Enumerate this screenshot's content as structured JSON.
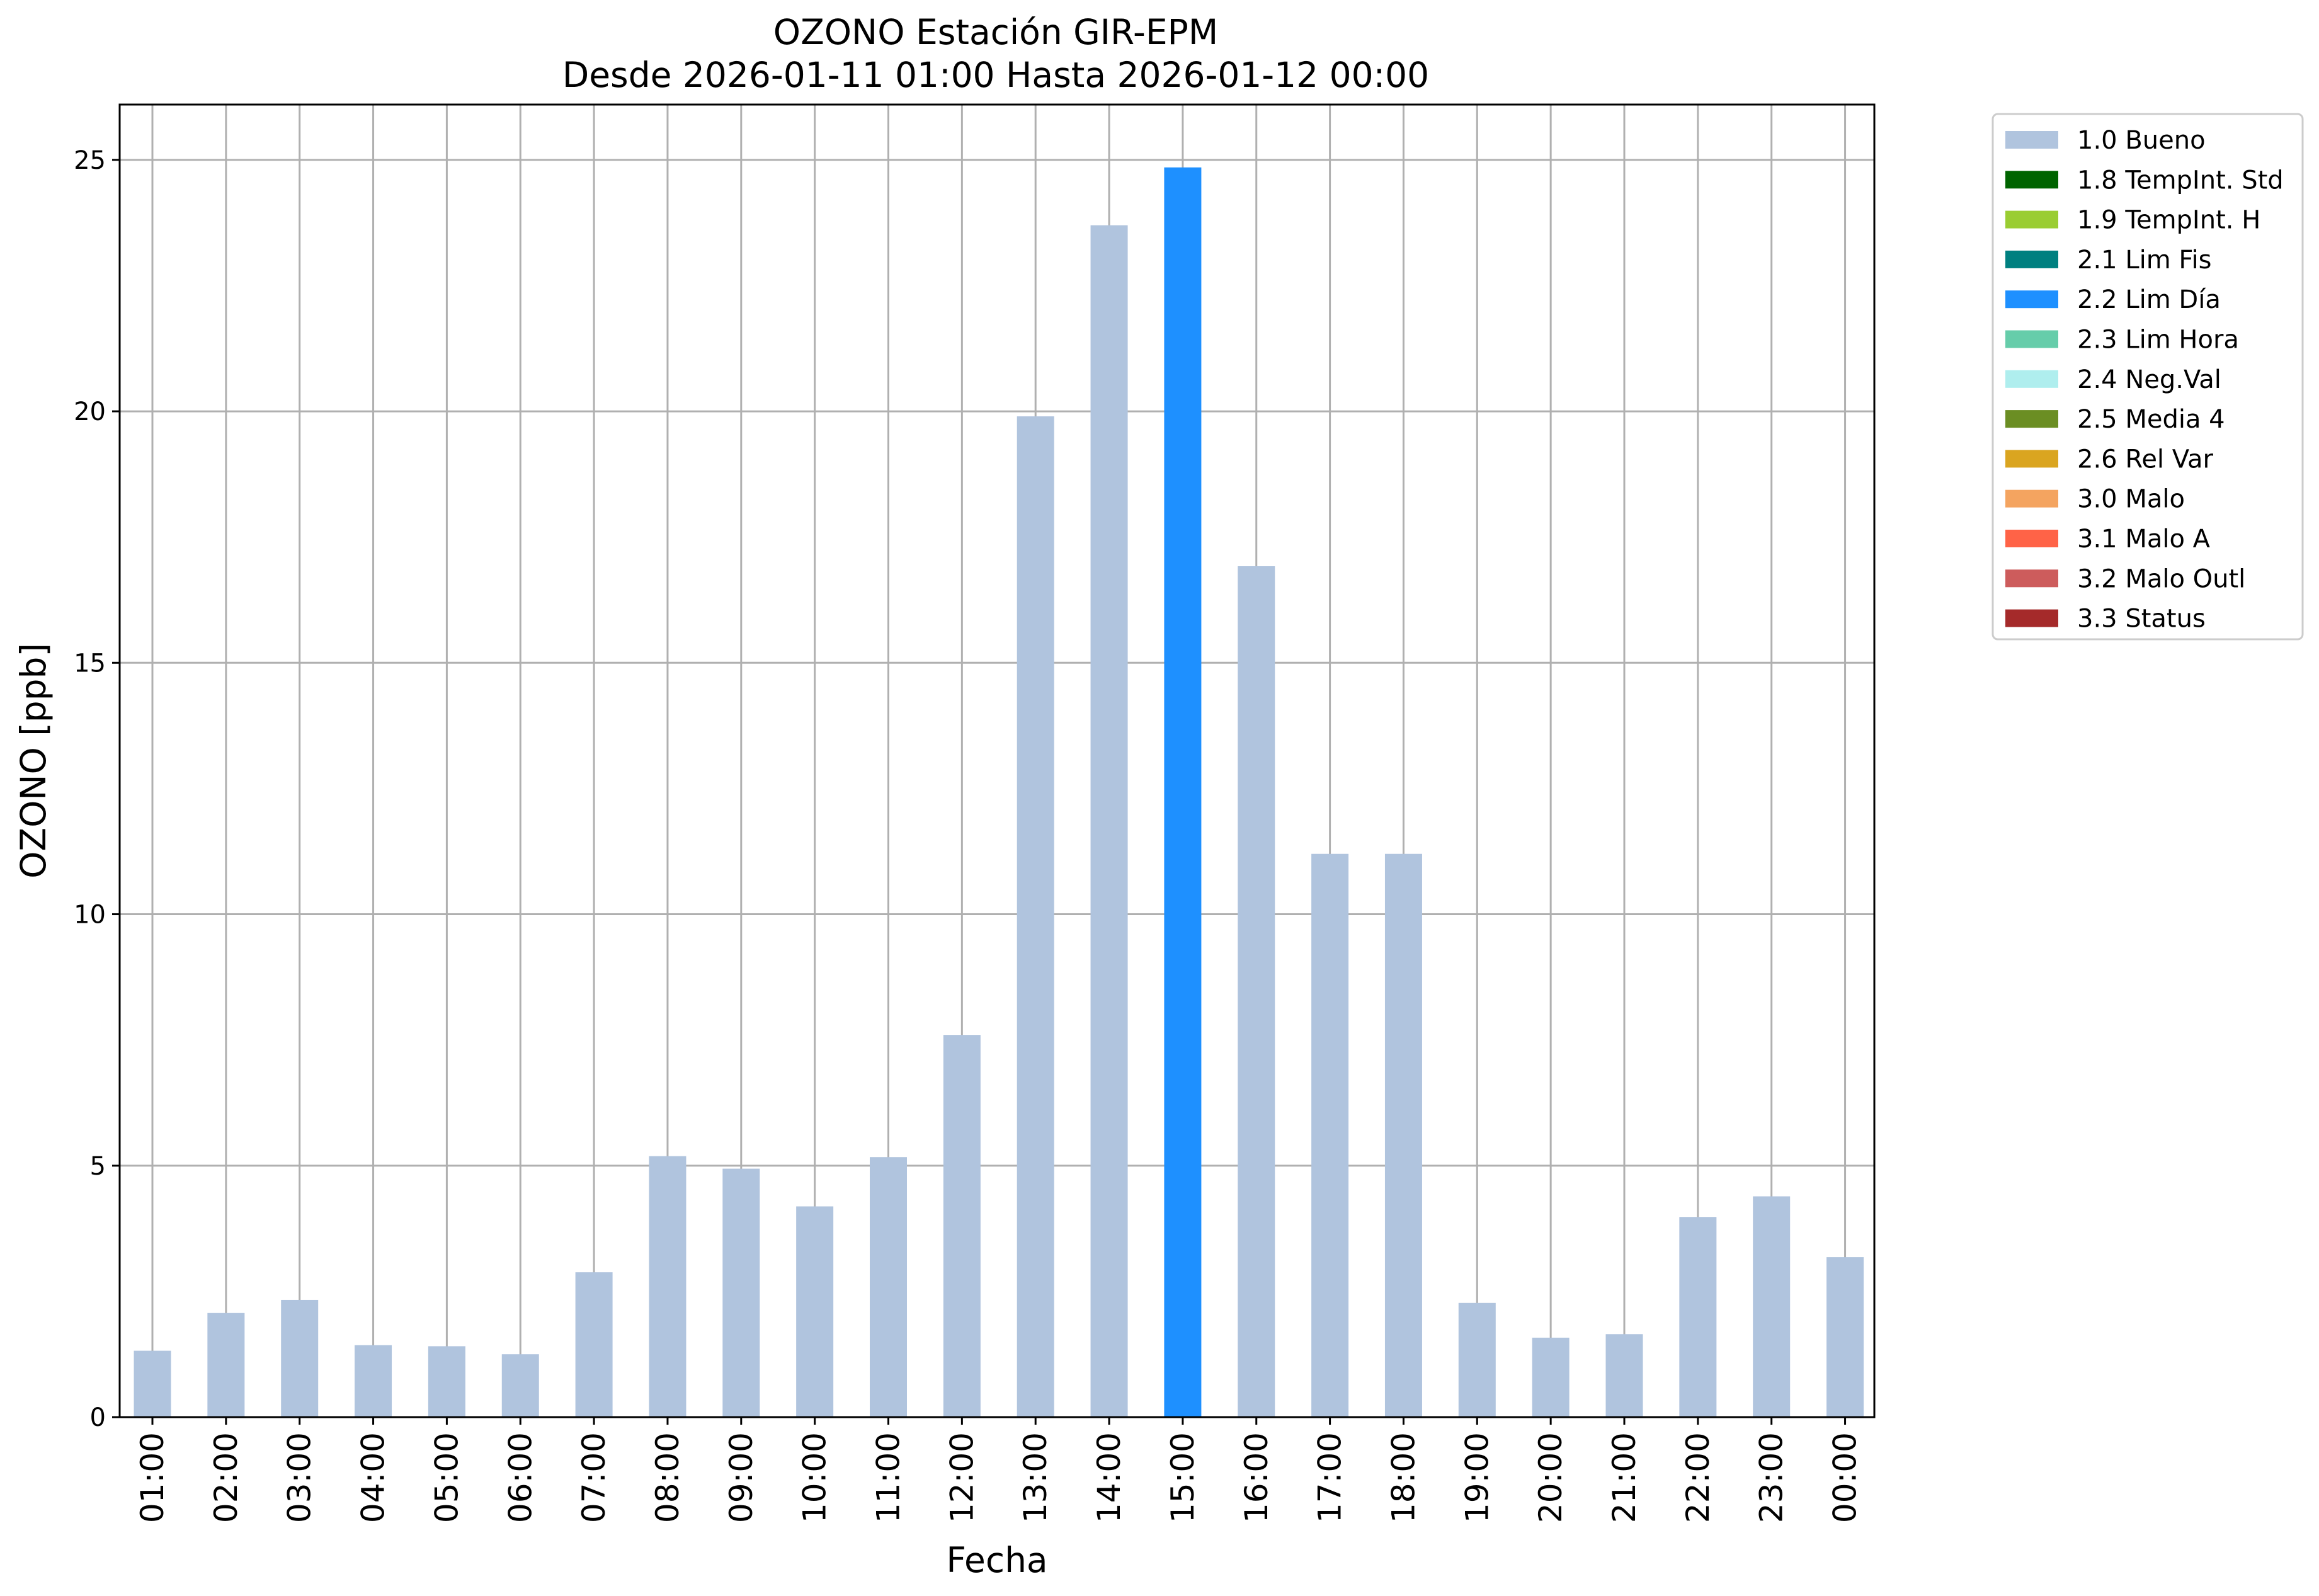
{
  "chart_data": {
    "type": "bar",
    "title": "OZONO Estación GIR-EPM",
    "subtitle": "Desde 2026-01-11 01:00 Hasta 2026-01-12 00:00",
    "xlabel": "Fecha",
    "ylabel": "OZONO [ppb]",
    "ylim": [
      0,
      26.1
    ],
    "yticks": [
      0,
      5,
      10,
      15,
      20,
      25
    ],
    "grid": true,
    "legend_position": "outside-top-right",
    "categories": [
      "01:00",
      "02:00",
      "03:00",
      "04:00",
      "05:00",
      "06:00",
      "07:00",
      "08:00",
      "09:00",
      "10:00",
      "11:00",
      "12:00",
      "13:00",
      "14:00",
      "15:00",
      "16:00",
      "17:00",
      "18:00",
      "19:00",
      "20:00",
      "21:00",
      "22:00",
      "23:00",
      "00:00"
    ],
    "values": [
      1.32,
      2.07,
      2.33,
      1.43,
      1.41,
      1.25,
      2.88,
      5.19,
      4.94,
      4.19,
      5.17,
      7.6,
      19.9,
      23.7,
      24.85,
      16.92,
      11.2,
      11.2,
      2.27,
      1.58,
      1.65,
      3.98,
      4.39,
      3.18
    ],
    "flags": [
      "1.0 Bueno",
      "1.0 Bueno",
      "1.0 Bueno",
      "1.0 Bueno",
      "1.0 Bueno",
      "1.0 Bueno",
      "1.0 Bueno",
      "1.0 Bueno",
      "1.0 Bueno",
      "1.0 Bueno",
      "1.0 Bueno",
      "1.0 Bueno",
      "1.0 Bueno",
      "1.0 Bueno",
      "2.2 Lim Día",
      "1.0 Bueno",
      "1.0 Bueno",
      "1.0 Bueno",
      "1.0 Bueno",
      "1.0 Bueno",
      "1.0 Bueno",
      "1.0 Bueno",
      "1.0 Bueno",
      "1.0 Bueno"
    ],
    "legend": [
      {
        "label": "1.0 Bueno",
        "color": "#b0c4de"
      },
      {
        "label": "1.8 TempInt. Std",
        "color": "#006400"
      },
      {
        "label": "1.9 TempInt. H",
        "color": "#9acd32"
      },
      {
        "label": "2.1 Lim Fis",
        "color": "#008080"
      },
      {
        "label": "2.2 Lim Día",
        "color": "#1e90ff"
      },
      {
        "label": "2.3 Lim Hora",
        "color": "#66cdaa"
      },
      {
        "label": "2.4 Neg.Val",
        "color": "#afeeee"
      },
      {
        "label": "2.5 Media 4",
        "color": "#6b8e23"
      },
      {
        "label": "2.6 Rel Var",
        "color": "#daa520"
      },
      {
        "label": "3.0 Malo",
        "color": "#f4a460"
      },
      {
        "label": "3.1 Malo A",
        "color": "#ff6347"
      },
      {
        "label": "3.2 Malo Outl",
        "color": "#cd5c5c"
      },
      {
        "label": "3.3 Status",
        "color": "#a52a2a"
      }
    ]
  }
}
